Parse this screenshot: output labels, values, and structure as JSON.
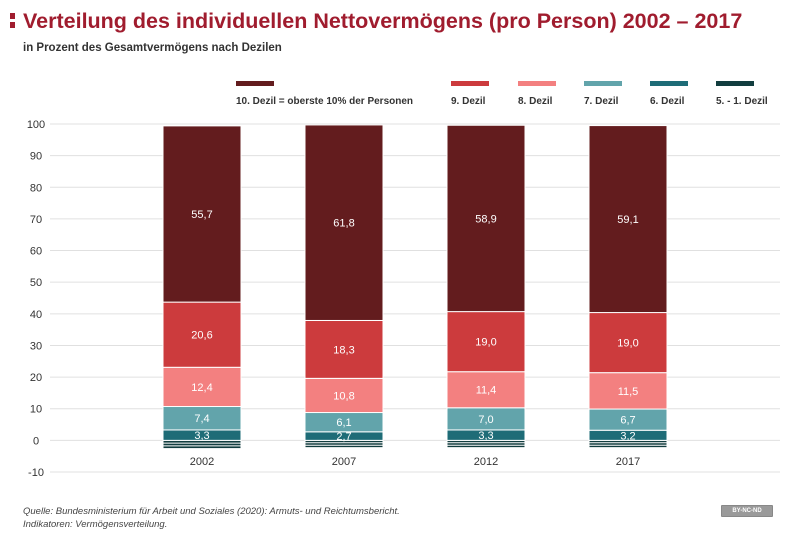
{
  "header": {
    "title": "Verteilung des individuellen Nettovermögens (pro Person) 2002 – 2017",
    "subtitle": "in Prozent des Gesamtvermögens nach Dezilen"
  },
  "footer": {
    "source": "Quelle: Bundesministerium für Arbeit und Soziales (2020): Armuts- und Reichtumsbericht.",
    "indicators": "Indikatoren: Vermögensverteilung.",
    "license": "BY-NC-ND"
  },
  "chart_data": {
    "type": "bar",
    "stacked": true,
    "categories": [
      "2002",
      "2007",
      "2012",
      "2017"
    ],
    "ylim": [
      -10,
      100
    ],
    "yticks": [
      -10,
      0,
      10,
      20,
      30,
      40,
      50,
      60,
      70,
      80,
      90,
      100
    ],
    "grid": true,
    "legend_position": "top",
    "series": [
      {
        "name": "5. - 1. Dezil",
        "color": "#123d3f",
        "values": [
          -2.6,
          -2.3,
          -2.3,
          -2.3
        ],
        "labels": [
          "",
          "",
          "",
          ""
        ]
      },
      {
        "name": "6. Dezil",
        "color": "#1e6c77",
        "values": [
          3.3,
          2.7,
          3.3,
          3.2
        ],
        "labels": [
          "3,3",
          "2,7",
          "3,3",
          "3,2"
        ]
      },
      {
        "name": "7. Dezil",
        "color": "#62a4ab",
        "values": [
          7.4,
          6.1,
          7.0,
          6.7
        ],
        "labels": [
          "7,4",
          "6,1",
          "7,0",
          "6,7"
        ]
      },
      {
        "name": "8. Dezil",
        "color": "#f38080",
        "values": [
          12.4,
          10.8,
          11.4,
          11.5
        ],
        "labels": [
          "12,4",
          "10,8",
          "11,4",
          "11,5"
        ]
      },
      {
        "name": "9. Dezil",
        "color": "#cc3b3d",
        "values": [
          20.6,
          18.3,
          19.0,
          19.0
        ],
        "labels": [
          "20,6",
          "18,3",
          "19,0",
          "19,0"
        ]
      },
      {
        "name": "10. Dezil = oberste 10% der Personen",
        "color": "#631c1e",
        "values": [
          55.7,
          61.8,
          58.9,
          59.1
        ],
        "labels": [
          "55,7",
          "61,8",
          "58,9",
          "59,1"
        ]
      }
    ],
    "legend_order": [
      {
        "name": "10. Dezil = oberste 10% der Personen",
        "color": "#631c1e"
      },
      {
        "name": "9. Dezil",
        "color": "#cc3b3d"
      },
      {
        "name": "8. Dezil",
        "color": "#f38080"
      },
      {
        "name": "7. Dezil",
        "color": "#62a4ab"
      },
      {
        "name": "6. Dezil",
        "color": "#1e6c77"
      },
      {
        "name": "5. - 1. Dezil",
        "color": "#123d3f"
      }
    ]
  }
}
